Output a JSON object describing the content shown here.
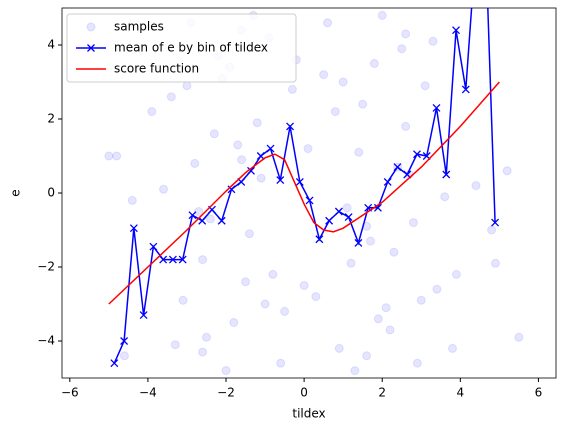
{
  "chart_data": {
    "type": "combo",
    "xlabel": "tildex",
    "ylabel": "e",
    "xlim": [
      -6.2,
      6.45
    ],
    "ylim": [
      -5,
      5
    ],
    "xticks": [
      {
        "value": -6,
        "label": "−6"
      },
      {
        "value": -4,
        "label": "−4"
      },
      {
        "value": -2,
        "label": "−2"
      },
      0,
      2,
      4,
      6
    ],
    "yticks": [
      {
        "value": -4,
        "label": "−4"
      },
      {
        "value": -2,
        "label": "−2"
      },
      0,
      2,
      4
    ],
    "legend": "upper left",
    "series": [
      {
        "name": "samples",
        "type": "scatter",
        "color": "#0000ff",
        "alpha": 0.1,
        "x": [
          -2.1,
          -1.5,
          -2.8,
          -3.3,
          -1.2,
          -2.4,
          -0.9,
          -1.8,
          -3.9,
          -2.6,
          -1.1,
          -0.6,
          -2.2,
          -3.1,
          -1.7,
          -4.4,
          -2.9,
          -1.4,
          -0.3,
          -2.5,
          -3.6,
          -1.9,
          -0.8,
          -2.0,
          -4.8,
          -1.3,
          -2.7,
          -3.4,
          -0.5,
          -1.6,
          2.1,
          1.5,
          2.8,
          3.3,
          1.2,
          2.4,
          0.9,
          1.8,
          3.9,
          2.6,
          1.1,
          0.6,
          2.2,
          3.1,
          1.7,
          4.4,
          2.9,
          1.4,
          0.3,
          2.5,
          3.6,
          1.9,
          0.8,
          2.0,
          4.8,
          1.3,
          2.7,
          3.4,
          0.5,
          1.6,
          -2.3,
          -1.0,
          -3.0,
          -1.6,
          -2.6,
          2.3,
          1.0,
          3.0,
          1.6,
          2.6,
          0.0,
          -0.2,
          0.1,
          5.5,
          -5.0,
          4.9,
          -4.6,
          5.2,
          -3.8,
          3.8
        ],
        "values": [
          3.1,
          -2.4,
          0.8,
          -4.1,
          1.9,
          -0.7,
          4.2,
          -3.5,
          2.2,
          -1.8,
          0.4,
          -4.6,
          3.7,
          -2.9,
          1.3,
          -0.2,
          4.6,
          -1.1,
          2.8,
          -3.9,
          0.1,
          3.4,
          -2.2,
          -4.8,
          1.0,
          4.8,
          -0.5,
          2.6,
          -3.2,
          0.9,
          -3.1,
          2.4,
          -0.8,
          4.1,
          -1.9,
          0.7,
          -4.2,
          3.5,
          -2.2,
          1.8,
          -0.4,
          4.6,
          -3.7,
          2.9,
          -1.3,
          0.2,
          -4.6,
          1.1,
          -2.8,
          3.9,
          -0.1,
          -3.4,
          2.2,
          4.8,
          -1.0,
          -4.8,
          0.5,
          -2.6,
          3.2,
          -0.9,
          1.6,
          -3.0,
          2.9,
          4.4,
          -4.3,
          -1.6,
          3.0,
          -2.9,
          -4.4,
          4.3,
          -2.5,
          3.6,
          1.2,
          -3.9,
          1.0,
          -1.9,
          -4.4,
          0.6,
          4.5,
          -4.2
        ]
      },
      {
        "name": "mean of e by bin of tildex",
        "type": "line",
        "marker": "x",
        "color": "#0000ff",
        "x": [
          -4.86,
          -4.61,
          -4.36,
          -4.11,
          -3.86,
          -3.61,
          -3.36,
          -3.11,
          -2.86,
          -2.61,
          -2.36,
          -2.11,
          -1.86,
          -1.61,
          -1.36,
          -1.11,
          -0.86,
          -0.61,
          -0.36,
          -0.11,
          0.14,
          0.39,
          0.64,
          0.89,
          1.14,
          1.39,
          1.64,
          1.89,
          2.14,
          2.39,
          2.64,
          2.89,
          3.14,
          3.39,
          3.64,
          3.89,
          4.14,
          4.39,
          4.64,
          4.89
        ],
        "values": [
          -4.6,
          -4.0,
          -0.95,
          -3.3,
          -1.45,
          -1.8,
          -1.8,
          -1.8,
          -0.6,
          -0.75,
          -0.45,
          -0.75,
          0.1,
          0.3,
          0.6,
          1.0,
          1.2,
          0.35,
          1.8,
          0.3,
          -0.2,
          -1.25,
          -0.75,
          -0.5,
          -0.65,
          -1.35,
          -0.4,
          -0.4,
          0.3,
          0.7,
          0.5,
          1.05,
          1.0,
          2.3,
          0.5,
          4.4,
          2.8,
          6.5,
          7.0,
          -0.8
        ]
      },
      {
        "name": "score function",
        "type": "line",
        "color": "#ff0000",
        "x": [
          -5,
          -4,
          -3,
          -2,
          -1.5,
          -1,
          -0.75,
          -0.5,
          -0.25,
          0,
          0.25,
          0.5,
          0.75,
          1,
          1.5,
          2,
          3,
          4,
          5
        ],
        "values": [
          -3,
          -2.0,
          -1.0,
          0.05,
          0.55,
          0.95,
          1.05,
          0.9,
          0.3,
          -0.3,
          -0.8,
          -1.0,
          -1.05,
          -0.95,
          -0.6,
          -0.25,
          0.7,
          1.8,
          3
        ]
      }
    ]
  }
}
